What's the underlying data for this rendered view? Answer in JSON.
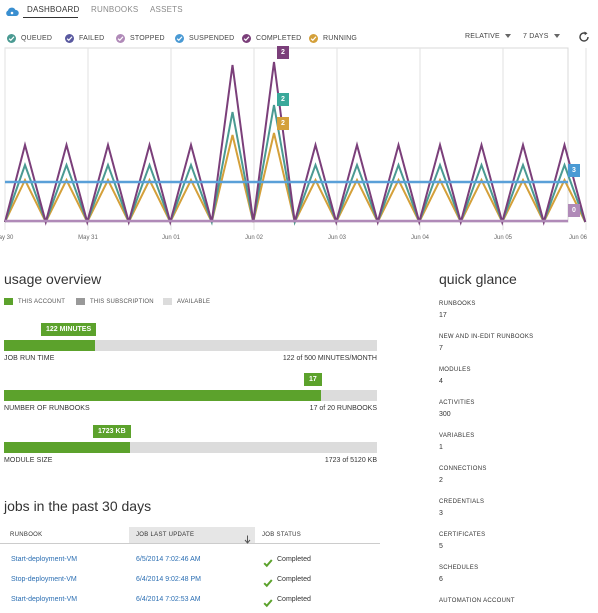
{
  "nav": {
    "tabs": [
      {
        "label": "DASHBOARD",
        "active": true
      },
      {
        "label": "RUNBOOKS",
        "active": false
      },
      {
        "label": "ASSETS",
        "active": false
      }
    ]
  },
  "legend": [
    {
      "label": "QUEUED",
      "color": "#4a9a92"
    },
    {
      "label": "FAILED",
      "color": "#5a5aa0"
    },
    {
      "label": "STOPPED",
      "color": "#b08ab8"
    },
    {
      "label": "SUSPENDED",
      "color": "#4a9ad4"
    },
    {
      "label": "COMPLETED",
      "color": "#7b3f7a"
    },
    {
      "label": "RUNNING",
      "color": "#d4a03a"
    }
  ],
  "controls": {
    "range_mode": "RELATIVE",
    "range": "7 DAYS"
  },
  "chart_data": {
    "type": "line",
    "x_ticks": [
      "ay 30",
      "May 31",
      "Jun 01",
      "Jun 02",
      "Jun 03",
      "Jun 04",
      "Jun 05",
      "Jun 06"
    ],
    "series": [
      {
        "name": "COMPLETED",
        "color": "#7b3f7a",
        "last_value": 2
      },
      {
        "name": "QUEUED",
        "color": "#4a9a92",
        "last_value": 2
      },
      {
        "name": "RUNNING",
        "color": "#d4a03a",
        "last_value": 2
      },
      {
        "name": "SUSPENDED",
        "color": "#4a9ad4",
        "last_value": 3
      },
      {
        "name": "STOPPED",
        "color": "#b08ab8",
        "last_value": 0
      }
    ],
    "flags": [
      {
        "label": "2",
        "color": "#7b3f7a"
      },
      {
        "label": "2",
        "color": "#3aa89a"
      },
      {
        "label": "2",
        "color": "#d4a03a"
      },
      {
        "label": "3",
        "color": "#4a9ad4"
      },
      {
        "label": "0",
        "color": "#b08ab8"
      }
    ]
  },
  "usage": {
    "title": "usage overview",
    "legend": [
      {
        "label": "THIS ACCOUNT",
        "color": "#5ca22c"
      },
      {
        "label": "THIS SUBSCRIPTION",
        "color": "#999999"
      },
      {
        "label": "AVAILABLE",
        "color": "#dcdcdc"
      }
    ],
    "bars": [
      {
        "label": "JOB RUN TIME",
        "badge": "122 MINUTES",
        "value": 122,
        "max": 500,
        "value_text": "122",
        "of_text": " of 500 MINUTES/MONTH"
      },
      {
        "label": "NUMBER OF RUNBOOKS",
        "badge": "17",
        "value": 17,
        "max": 20,
        "value_text": "17",
        "of_text": " of 20 RUNBOOKS"
      },
      {
        "label": "MODULE SIZE",
        "badge": "1723 KB",
        "value": 1723,
        "max": 5120,
        "value_text": "1723",
        "of_text": " of 5120 KB"
      }
    ]
  },
  "quick_glance": {
    "title": "quick glance",
    "items": [
      {
        "label": "RUNBOOKS",
        "value": "17"
      },
      {
        "label": "NEW AND IN-EDIT RUNBOOKS",
        "value": "7"
      },
      {
        "label": "MODULES",
        "value": "4"
      },
      {
        "label": "ACTIVITIES",
        "value": "300"
      },
      {
        "label": "VARIABLES",
        "value": "1"
      },
      {
        "label": "CONNECTIONS",
        "value": "2"
      },
      {
        "label": "CREDENTIALS",
        "value": "3"
      },
      {
        "label": "CERTIFICATES",
        "value": "5"
      },
      {
        "label": "SCHEDULES",
        "value": "6"
      },
      {
        "label": "AUTOMATION ACCOUNT",
        "value": ""
      }
    ]
  },
  "jobs": {
    "title": "jobs in the past 30 days",
    "columns": [
      "RUNBOOK",
      "JOB LAST UPDATE",
      "JOB STATUS"
    ],
    "rows": [
      {
        "runbook": "Start-deployment-VM",
        "updated": "6/5/2014 7:02:46 AM",
        "status": "Completed"
      },
      {
        "runbook": "Stop-deployment-VM",
        "updated": "6/4/2014 9:02:48 PM",
        "status": "Completed"
      },
      {
        "runbook": "Start-deployment-VM",
        "updated": "6/4/2014 7:02:53 AM",
        "status": "Completed"
      }
    ]
  }
}
